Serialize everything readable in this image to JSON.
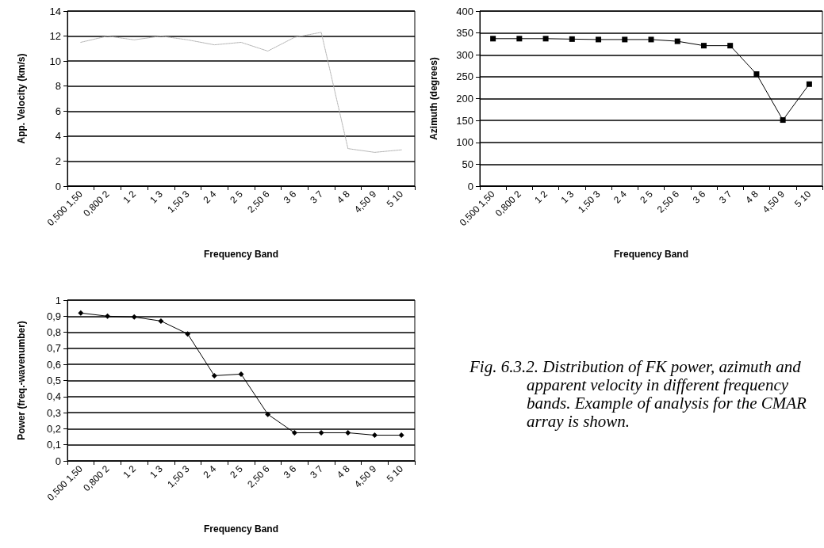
{
  "chart_data": [
    {
      "type": "line",
      "xlabel": "Frequency Band",
      "ylabel": "App. Velocity (km/s)",
      "categories": [
        "0,500 1,50",
        "0,800 2",
        "1 2",
        "1 3",
        "1,50 3",
        "2 4",
        "2 5",
        "2,50 6",
        "3 6",
        "3 7",
        "4 8",
        "4,50 9",
        "5 10"
      ],
      "series": [
        {
          "color": "#b0b0b0",
          "values": [
            11.5,
            12,
            11.7,
            12,
            11.7,
            11.3,
            11.5,
            10.8,
            11.9,
            12.3,
            3,
            2.7,
            2.9
          ]
        }
      ],
      "ylim": [
        0,
        14
      ],
      "yticks": [
        0,
        2,
        4,
        6,
        8,
        10,
        12,
        14
      ],
      "grid": "y",
      "marker": "none",
      "line_style": "dotted"
    },
    {
      "type": "line",
      "xlabel": "Frequency Band",
      "ylabel": "Azimuth (degrees)",
      "categories": [
        "0,500 1,50",
        "0,800 2",
        "1 2",
        "1 3",
        "1,50 3",
        "2 4",
        "2 5",
        "2,50 6",
        "3 6",
        "3 7",
        "4 8",
        "4,50 9",
        "5 10"
      ],
      "series": [
        {
          "color": "#000000",
          "values": [
            337,
            337,
            337,
            336,
            335,
            335,
            335,
            331,
            321,
            321,
            256,
            151,
            233
          ]
        }
      ],
      "ylim": [
        0,
        400
      ],
      "yticks": [
        0,
        50,
        100,
        150,
        200,
        250,
        300,
        350,
        400
      ],
      "grid": "y",
      "marker": "square",
      "line_style": "solid"
    },
    {
      "type": "line",
      "xlabel": "Frequency Band",
      "ylabel": "Power (freq.-wavenumber)",
      "categories": [
        "0,500 1,50",
        "0,800 2",
        "1 2",
        "1 3",
        "1,50 3",
        "2 4",
        "2 5",
        "2,50 6",
        "3 6",
        "3 7",
        "4 8",
        "4,50 9",
        "5 10"
      ],
      "series": [
        {
          "color": "#000000",
          "values": [
            0.92,
            0.9,
            0.895,
            0.87,
            0.79,
            0.53,
            0.54,
            0.29,
            0.175,
            0.175,
            0.175,
            0.16,
            0.16
          ]
        }
      ],
      "ylim": [
        0,
        1
      ],
      "yticks": [
        0,
        {
          "value": 0.1,
          "label": "0,1"
        },
        {
          "value": 0.2,
          "label": "0,2"
        },
        {
          "value": 0.3,
          "label": "0,3"
        },
        {
          "value": 0.4,
          "label": "0,4"
        },
        {
          "value": 0.5,
          "label": "0,5"
        },
        {
          "value": 0.6,
          "label": "0,6"
        },
        {
          "value": 0.7,
          "label": "0,7"
        },
        {
          "value": 0.8,
          "label": "0,8"
        },
        {
          "value": 0.9,
          "label": "0,9"
        },
        1
      ],
      "grid": "y",
      "marker": "diamond",
      "line_style": "solid",
      "annotations": [
        "Fig. 6.3.2.  Distribution of FK power, azimuth and apparent velocity in different frequency bands. Example of analysis for the CMAR array is shown."
      ]
    }
  ]
}
